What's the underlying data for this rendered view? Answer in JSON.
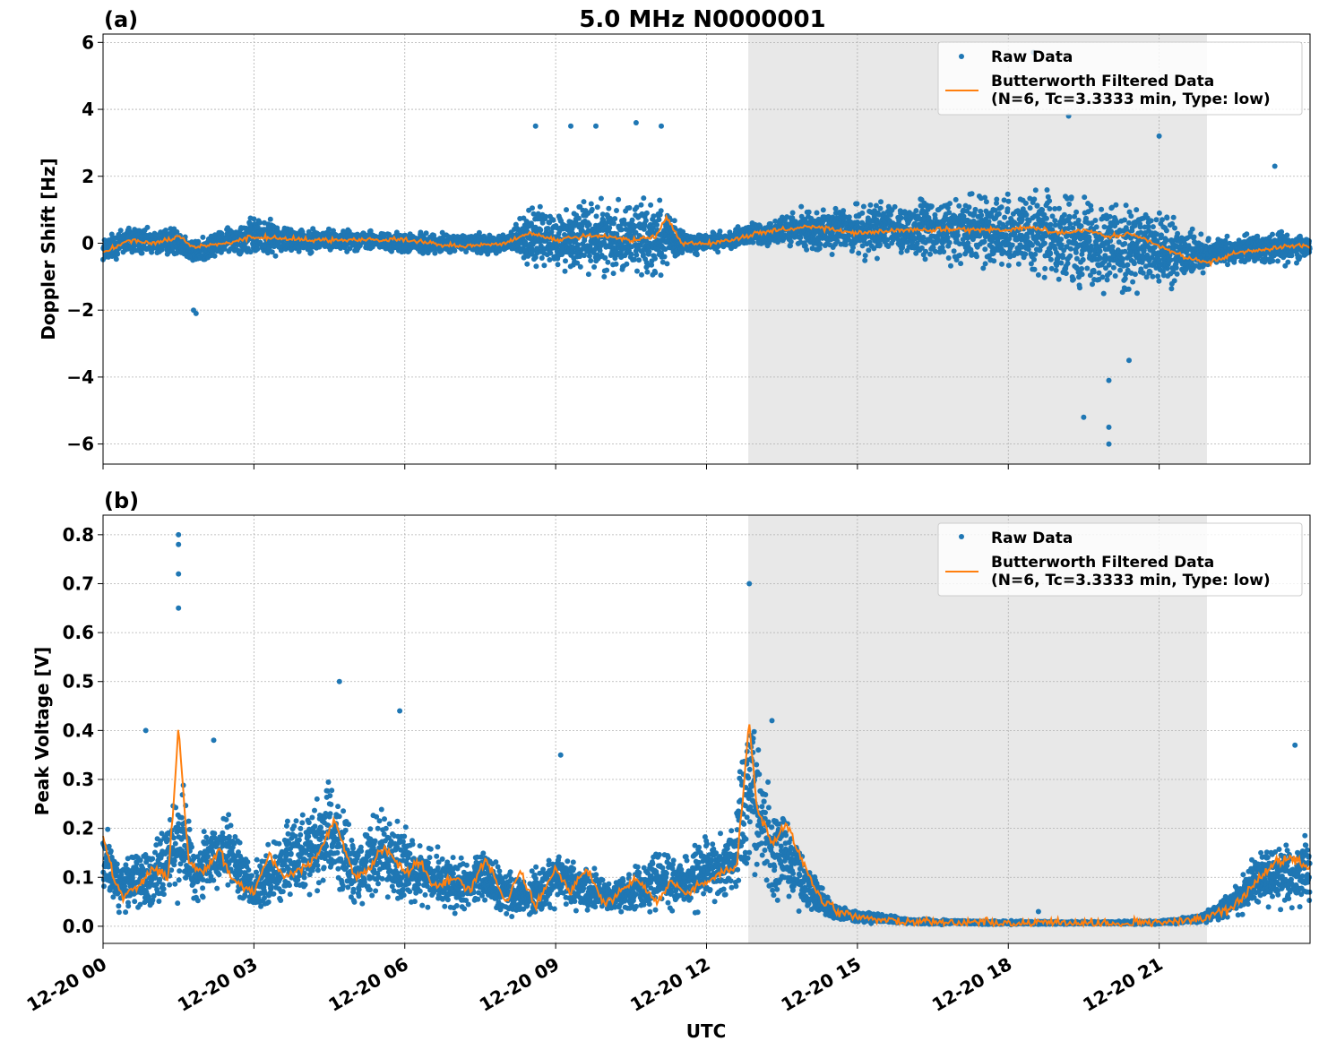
{
  "figure": {
    "title": "5.0 MHz N0000001",
    "xlabel": "UTC"
  },
  "chart_data": [
    {
      "type": "scatter",
      "panel_label": "(a)",
      "ylabel": "Doppler Shift [Hz]",
      "xlim": [
        "2024-12-20 00:00",
        "2024-12-20 24:00"
      ],
      "ylim": [
        -6.6,
        6.25
      ],
      "y_ticks": [
        6,
        4,
        2,
        0,
        -2,
        -4,
        -6
      ],
      "y_tick_labels": [
        "6",
        "4",
        "2",
        "0",
        "−2",
        "−4",
        "−6"
      ],
      "x_tick_hours": [
        0,
        3,
        6,
        9,
        12,
        15,
        18,
        21
      ],
      "grid": true,
      "legend_position": "top-right",
      "shaded_interval_hours": [
        12.83,
        21.95
      ],
      "shade_color": "#e8e8e8",
      "series": [
        {
          "name": "Raw Data",
          "kind": "points",
          "color": "#1f77b4",
          "x_hours": [
            0.0,
            0.5,
            1.0,
            1.5,
            1.8,
            2.5,
            3.0,
            4.0,
            5.0,
            6.0,
            7.0,
            8.0,
            8.5,
            9.0,
            9.5,
            10.0,
            10.5,
            11.0,
            11.5,
            12.0,
            12.5,
            13.0,
            14.0,
            15.0,
            16.0,
            17.0,
            18.0,
            18.5,
            19.0,
            19.5,
            20.0,
            20.5,
            21.0,
            21.5,
            22.0,
            22.5,
            23.0,
            23.5,
            24.0
          ],
          "y_center": [
            -0.2,
            0.1,
            0.0,
            0.1,
            -0.3,
            0.1,
            0.2,
            0.1,
            0.1,
            0.0,
            0.0,
            0.0,
            0.2,
            0.1,
            0.2,
            0.2,
            0.2,
            0.2,
            0.0,
            0.0,
            0.1,
            0.3,
            0.4,
            0.4,
            0.4,
            0.4,
            0.4,
            0.3,
            0.2,
            0.1,
            0.0,
            -0.1,
            -0.3,
            -0.4,
            -0.3,
            -0.2,
            -0.1,
            -0.1,
            -0.1
          ],
          "y_spread": [
            0.5,
            0.7,
            0.5,
            0.6,
            0.5,
            0.5,
            0.8,
            0.5,
            0.4,
            0.4,
            0.4,
            0.4,
            1.2,
            1.2,
            1.5,
            1.5,
            1.5,
            1.7,
            0.5,
            0.4,
            0.4,
            0.5,
            0.8,
            1.0,
            1.2,
            1.3,
            1.5,
            1.6,
            1.8,
            1.9,
            1.9,
            1.8,
            1.6,
            1.2,
            0.6,
            0.5,
            0.6,
            0.7,
            0.4
          ],
          "outliers": [
            [
              1.85,
              -2.1
            ],
            [
              1.8,
              -2.0
            ],
            [
              8.6,
              3.5
            ],
            [
              9.3,
              3.5
            ],
            [
              9.8,
              3.5
            ],
            [
              10.6,
              3.6
            ],
            [
              11.1,
              3.5
            ],
            [
              18.5,
              5.7
            ],
            [
              19.2,
              3.8
            ],
            [
              19.5,
              -5.2
            ],
            [
              20.0,
              -6.0
            ],
            [
              20.0,
              -5.5
            ],
            [
              20.0,
              -4.1
            ],
            [
              20.4,
              -3.5
            ],
            [
              21.0,
              3.2
            ],
            [
              23.3,
              2.3
            ]
          ]
        },
        {
          "name": "Butterworth Filtered Data\n(N=6, Tc=3.3333 min, Type: low)",
          "kind": "line",
          "color": "#ff7f0e",
          "x_hours": [
            0.0,
            0.5,
            1.0,
            1.5,
            1.8,
            2.5,
            3.0,
            4.0,
            5.0,
            6.0,
            7.0,
            8.0,
            8.5,
            9.0,
            9.5,
            10.0,
            10.5,
            11.0,
            11.2,
            11.5,
            12.0,
            12.5,
            13.0,
            14.0,
            15.0,
            16.0,
            17.0,
            18.0,
            18.5,
            19.0,
            19.5,
            20.0,
            20.5,
            21.0,
            21.5,
            22.0,
            22.5,
            23.0,
            23.5,
            24.0
          ],
          "y": [
            -0.3,
            0.1,
            0.0,
            0.2,
            -0.1,
            0.0,
            0.2,
            0.1,
            0.1,
            0.1,
            -0.1,
            0.0,
            0.3,
            0.1,
            0.2,
            0.2,
            0.1,
            0.2,
            0.8,
            0.0,
            0.0,
            0.1,
            0.3,
            0.5,
            0.3,
            0.4,
            0.4,
            0.4,
            0.5,
            0.3,
            0.4,
            0.2,
            0.3,
            -0.1,
            -0.4,
            -0.6,
            -0.3,
            -0.2,
            -0.1,
            -0.1
          ]
        }
      ]
    },
    {
      "type": "scatter",
      "panel_label": "(b)",
      "ylabel": "Peak Voltage [V]",
      "xlim": [
        "2024-12-20 00:00",
        "2024-12-20 24:00"
      ],
      "ylim": [
        -0.035,
        0.84
      ],
      "y_ticks": [
        0.8,
        0.7,
        0.6,
        0.5,
        0.4,
        0.3,
        0.2,
        0.1,
        0.0
      ],
      "y_tick_labels": [
        "0.8",
        "0.7",
        "0.6",
        "0.5",
        "0.4",
        "0.3",
        "0.2",
        "0.1",
        "0.0"
      ],
      "x_tick_hours": [
        0,
        3,
        6,
        9,
        12,
        15,
        18,
        21
      ],
      "x_tick_labels": [
        "12-20 00",
        "12-20 03",
        "12-20 06",
        "12-20 09",
        "12-20 12",
        "12-20 15",
        "12-20 18",
        "12-20 21"
      ],
      "grid": true,
      "legend_position": "top-right",
      "shaded_interval_hours": [
        12.83,
        21.95
      ],
      "shade_color": "#e8e8e8",
      "series": [
        {
          "name": "Raw Data",
          "kind": "points",
          "color": "#1f77b4",
          "x_hours": [
            0.0,
            0.3,
            0.6,
            0.9,
            1.2,
            1.5,
            1.8,
            2.1,
            2.5,
            3.0,
            3.5,
            4.0,
            4.5,
            5.0,
            5.5,
            6.0,
            6.5,
            7.0,
            7.5,
            8.0,
            8.5,
            9.0,
            9.5,
            10.0,
            10.5,
            11.0,
            11.5,
            12.0,
            12.5,
            12.85,
            13.2,
            13.6,
            14.0,
            14.5,
            15.0,
            16.0,
            17.0,
            18.0,
            19.0,
            20.0,
            21.0,
            21.8,
            22.2,
            22.6,
            23.0,
            23.5,
            24.0
          ],
          "y_center": [
            0.15,
            0.08,
            0.1,
            0.09,
            0.12,
            0.2,
            0.11,
            0.13,
            0.15,
            0.07,
            0.12,
            0.15,
            0.2,
            0.11,
            0.15,
            0.12,
            0.1,
            0.08,
            0.1,
            0.07,
            0.06,
            0.1,
            0.08,
            0.06,
            0.07,
            0.1,
            0.09,
            0.12,
            0.13,
            0.3,
            0.18,
            0.14,
            0.08,
            0.03,
            0.02,
            0.01,
            0.008,
            0.007,
            0.007,
            0.007,
            0.008,
            0.015,
            0.03,
            0.06,
            0.1,
            0.11,
            0.11
          ],
          "y_spread": [
            0.1,
            0.07,
            0.08,
            0.08,
            0.1,
            0.18,
            0.08,
            0.1,
            0.1,
            0.06,
            0.1,
            0.12,
            0.15,
            0.09,
            0.12,
            0.1,
            0.08,
            0.07,
            0.08,
            0.06,
            0.06,
            0.08,
            0.06,
            0.05,
            0.06,
            0.08,
            0.07,
            0.1,
            0.1,
            0.25,
            0.15,
            0.12,
            0.07,
            0.025,
            0.015,
            0.008,
            0.005,
            0.005,
            0.004,
            0.004,
            0.005,
            0.01,
            0.025,
            0.05,
            0.08,
            0.1,
            0.09
          ],
          "outliers": [
            [
              1.5,
              0.8
            ],
            [
              1.5,
              0.78
            ],
            [
              1.5,
              0.72
            ],
            [
              1.5,
              0.65
            ],
            [
              0.85,
              0.4
            ],
            [
              2.2,
              0.38
            ],
            [
              4.7,
              0.5
            ],
            [
              5.9,
              0.44
            ],
            [
              9.1,
              0.35
            ],
            [
              12.85,
              0.7
            ],
            [
              13.3,
              0.42
            ],
            [
              18.6,
              0.03
            ],
            [
              23.7,
              0.37
            ]
          ]
        },
        {
          "name": "Butterworth Filtered Data\n(N=6, Tc=3.3333 min, Type: low)",
          "kind": "line",
          "color": "#ff7f0e",
          "x_hours": [
            0.0,
            0.2,
            0.4,
            0.7,
            1.0,
            1.3,
            1.5,
            1.7,
            2.0,
            2.3,
            2.6,
            3.0,
            3.3,
            3.6,
            4.0,
            4.3,
            4.6,
            5.0,
            5.3,
            5.6,
            6.0,
            6.3,
            6.6,
            7.0,
            7.3,
            7.6,
            8.0,
            8.3,
            8.6,
            9.0,
            9.3,
            9.6,
            10.0,
            10.3,
            10.6,
            11.0,
            11.3,
            11.6,
            12.0,
            12.3,
            12.6,
            12.85,
            13.0,
            13.3,
            13.6,
            14.0,
            14.3,
            14.6,
            15.0,
            15.5,
            16.0,
            17.0,
            18.0,
            19.0,
            20.0,
            21.0,
            21.5,
            22.0,
            22.3,
            22.6,
            23.0,
            23.3,
            23.6,
            24.0
          ],
          "y": [
            0.19,
            0.1,
            0.06,
            0.08,
            0.12,
            0.1,
            0.41,
            0.13,
            0.11,
            0.16,
            0.09,
            0.07,
            0.15,
            0.1,
            0.12,
            0.15,
            0.22,
            0.1,
            0.12,
            0.16,
            0.11,
            0.13,
            0.08,
            0.1,
            0.07,
            0.14,
            0.05,
            0.11,
            0.04,
            0.12,
            0.07,
            0.12,
            0.04,
            0.07,
            0.1,
            0.05,
            0.09,
            0.07,
            0.09,
            0.11,
            0.12,
            0.42,
            0.24,
            0.17,
            0.21,
            0.11,
            0.05,
            0.03,
            0.02,
            0.012,
            0.01,
            0.007,
            0.006,
            0.006,
            0.006,
            0.008,
            0.012,
            0.02,
            0.03,
            0.05,
            0.1,
            0.13,
            0.14,
            0.12
          ]
        }
      ]
    }
  ]
}
